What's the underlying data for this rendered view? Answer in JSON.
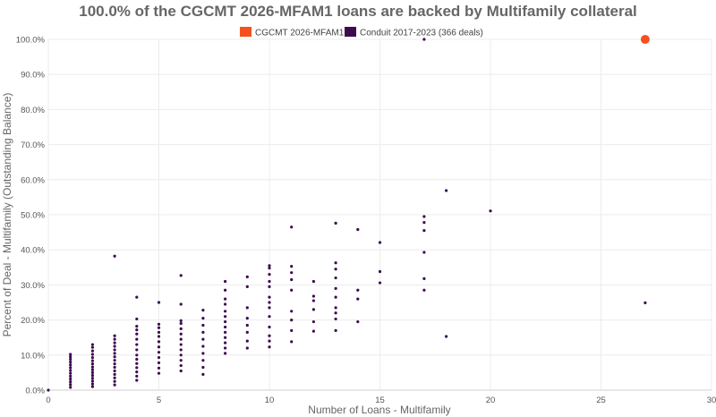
{
  "chart_data": {
    "type": "scatter",
    "title": "100.0% of the CGCMT 2026-MFAM1 loans are backed by Multifamily collateral",
    "xlabel": "Number of Loans - Multifamily",
    "ylabel": "Percent of Deal - Multifamily (Outstanding Balance)",
    "xlim": [
      0,
      30
    ],
    "ylim": [
      0,
      100
    ],
    "x_ticks": [
      "0",
      "5",
      "10",
      "15",
      "20",
      "25",
      "30"
    ],
    "y_ticks": [
      "0.0%",
      "10.0%",
      "20.0%",
      "30.0%",
      "40.0%",
      "50.0%",
      "60.0%",
      "70.0%",
      "80.0%",
      "90.0%",
      "100.0%"
    ],
    "grid": true,
    "legend_position": "top-center",
    "series": [
      {
        "name": "CGCMT 2026-MFAM1",
        "color": "#f4511e",
        "points": [
          [
            27,
            100.0
          ]
        ]
      },
      {
        "name": "Conduit 2017-2023 (366 deals)",
        "color": "#3d0a4f",
        "points": [
          [
            0,
            0.0
          ],
          [
            1,
            0.8
          ],
          [
            1,
            1.6
          ],
          [
            1,
            2.4
          ],
          [
            1,
            3.2
          ],
          [
            1,
            4.0
          ],
          [
            1,
            4.8
          ],
          [
            1,
            5.6
          ],
          [
            1,
            6.4
          ],
          [
            1,
            7.2
          ],
          [
            1,
            8.0
          ],
          [
            1,
            8.8
          ],
          [
            1,
            9.5
          ],
          [
            1,
            10.2
          ],
          [
            2,
            1.0
          ],
          [
            2,
            1.8
          ],
          [
            2,
            2.6
          ],
          [
            2,
            3.4
          ],
          [
            2,
            4.2
          ],
          [
            2,
            5.0
          ],
          [
            2,
            5.8
          ],
          [
            2,
            6.6
          ],
          [
            2,
            7.5
          ],
          [
            2,
            8.4
          ],
          [
            2,
            9.3
          ],
          [
            2,
            10.2
          ],
          [
            2,
            11.2
          ],
          [
            2,
            12.2
          ],
          [
            2,
            13.0
          ],
          [
            3,
            1.5
          ],
          [
            3,
            2.5
          ],
          [
            3,
            3.5
          ],
          [
            3,
            4.5
          ],
          [
            3,
            5.5
          ],
          [
            3,
            6.5
          ],
          [
            3,
            7.5
          ],
          [
            3,
            8.5
          ],
          [
            3,
            9.5
          ],
          [
            3,
            10.5
          ],
          [
            3,
            11.5
          ],
          [
            3,
            12.5
          ],
          [
            3,
            13.5
          ],
          [
            3,
            14.5
          ],
          [
            3,
            15.5
          ],
          [
            3,
            38.2
          ],
          [
            4,
            2.8
          ],
          [
            4,
            4.0
          ],
          [
            4,
            5.2
          ],
          [
            4,
            6.4
          ],
          [
            4,
            7.6
          ],
          [
            4,
            8.8
          ],
          [
            4,
            10.0
          ],
          [
            4,
            11.5
          ],
          [
            4,
            13.0
          ],
          [
            4,
            14.5
          ],
          [
            4,
            16.0
          ],
          [
            4,
            17.2
          ],
          [
            4,
            18.2
          ],
          [
            4,
            20.3
          ],
          [
            4,
            26.5
          ],
          [
            5,
            4.8
          ],
          [
            5,
            6.3
          ],
          [
            5,
            7.8
          ],
          [
            5,
            9.3
          ],
          [
            5,
            10.8
          ],
          [
            5,
            12.3
          ],
          [
            5,
            13.8
          ],
          [
            5,
            15.3
          ],
          [
            5,
            16.5
          ],
          [
            5,
            17.8
          ],
          [
            5,
            18.8
          ],
          [
            5,
            25.0
          ],
          [
            6,
            5.5
          ],
          [
            6,
            7.0
          ],
          [
            6,
            8.5
          ],
          [
            6,
            10.0
          ],
          [
            6,
            11.5
          ],
          [
            6,
            13.0
          ],
          [
            6,
            14.5
          ],
          [
            6,
            16.0
          ],
          [
            6,
            17.5
          ],
          [
            6,
            19.0
          ],
          [
            6,
            19.8
          ],
          [
            6,
            24.5
          ],
          [
            6,
            32.7
          ],
          [
            7,
            4.5
          ],
          [
            7,
            6.5
          ],
          [
            7,
            8.5
          ],
          [
            7,
            10.5
          ],
          [
            7,
            12.5
          ],
          [
            7,
            14.5
          ],
          [
            7,
            16.5
          ],
          [
            7,
            18.5
          ],
          [
            7,
            20.5
          ],
          [
            7,
            22.8
          ],
          [
            8,
            10.5
          ],
          [
            8,
            12.0
          ],
          [
            8,
            13.5
          ],
          [
            8,
            15.0
          ],
          [
            8,
            16.5
          ],
          [
            8,
            18.0
          ],
          [
            8,
            19.5
          ],
          [
            8,
            21.0
          ],
          [
            8,
            22.5
          ],
          [
            8,
            24.5
          ],
          [
            8,
            26.0
          ],
          [
            8,
            28.5
          ],
          [
            8,
            31.0
          ],
          [
            9,
            12.0
          ],
          [
            9,
            14.0
          ],
          [
            9,
            16.5
          ],
          [
            9,
            18.5
          ],
          [
            9,
            20.5
          ],
          [
            9,
            23.5
          ],
          [
            9,
            29.5
          ],
          [
            9,
            32.3
          ],
          [
            10,
            12.3
          ],
          [
            10,
            14.0
          ],
          [
            10,
            15.5
          ],
          [
            10,
            18.0
          ],
          [
            10,
            21.0
          ],
          [
            10,
            23.5
          ],
          [
            10,
            25.0
          ],
          [
            10,
            26.5
          ],
          [
            10,
            29.5
          ],
          [
            10,
            31.0
          ],
          [
            10,
            33.0
          ],
          [
            10,
            34.8
          ],
          [
            10,
            35.5
          ],
          [
            11,
            13.8
          ],
          [
            11,
            17.0
          ],
          [
            11,
            20.0
          ],
          [
            11,
            22.5
          ],
          [
            11,
            28.5
          ],
          [
            11,
            31.5
          ],
          [
            11,
            33.5
          ],
          [
            11,
            35.3
          ],
          [
            11,
            46.5
          ],
          [
            12,
            16.8
          ],
          [
            12,
            19.5
          ],
          [
            12,
            23.0
          ],
          [
            12,
            25.5
          ],
          [
            12,
            26.8
          ],
          [
            12,
            31.0
          ],
          [
            13,
            17.0
          ],
          [
            13,
            20.3
          ],
          [
            13,
            22.0
          ],
          [
            13,
            23.5
          ],
          [
            13,
            26.5
          ],
          [
            13,
            29.0
          ],
          [
            13,
            32.0
          ],
          [
            13,
            34.5
          ],
          [
            13,
            36.3
          ],
          [
            13,
            47.6
          ],
          [
            14,
            19.5
          ],
          [
            14,
            26.0
          ],
          [
            14,
            28.5
          ],
          [
            14,
            45.8
          ],
          [
            15,
            30.6
          ],
          [
            15,
            33.8
          ],
          [
            15,
            42.1
          ],
          [
            17,
            28.5
          ],
          [
            17,
            31.8
          ],
          [
            17,
            39.3
          ],
          [
            17,
            45.5
          ],
          [
            17,
            47.8
          ],
          [
            17,
            49.5
          ],
          [
            17,
            100.0
          ],
          [
            18,
            15.3
          ],
          [
            18,
            56.9
          ],
          [
            20,
            51.1
          ],
          [
            27,
            24.9
          ]
        ]
      }
    ]
  }
}
